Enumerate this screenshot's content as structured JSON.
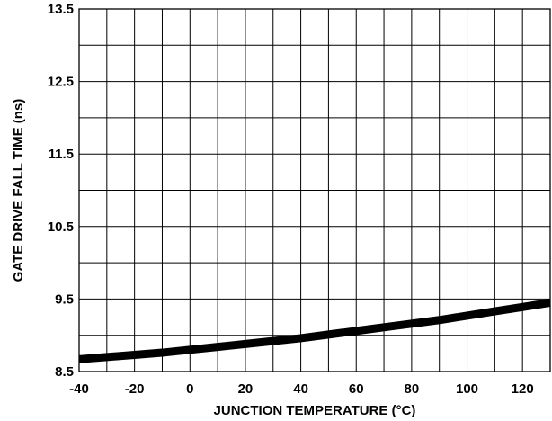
{
  "chart_data": {
    "type": "line",
    "xlabel": "JUNCTION TEMPERATURE (°C)",
    "ylabel": "GATE DRIVE FALL TIME (ns)",
    "xlim": [
      -40,
      130
    ],
    "ylim": [
      8.5,
      13.5
    ],
    "x_ticks": [
      -40,
      -20,
      0,
      20,
      40,
      60,
      80,
      100,
      120
    ],
    "y_ticks": [
      8.5,
      9.5,
      10.5,
      11.5,
      12.5,
      13.5
    ],
    "x_tick_labels": [
      "-40",
      "-20",
      "0",
      "20",
      "40",
      "60",
      "80",
      "100",
      "120"
    ],
    "y_tick_labels": [
      "8.5",
      "9.5",
      "10.5",
      "11.5",
      "12.5",
      "13.5"
    ],
    "x_grid_step": 10,
    "y_grid_step": 0.5,
    "grid": true,
    "series": [
      {
        "x": [
          -40,
          -30,
          -20,
          -10,
          0,
          10,
          20,
          30,
          40,
          50,
          60,
          70,
          80,
          90,
          100,
          110,
          120,
          130
        ],
        "y": [
          8.67,
          8.7,
          8.73,
          8.76,
          8.8,
          8.84,
          8.88,
          8.92,
          8.96,
          9.01,
          9.06,
          9.11,
          9.16,
          9.21,
          9.27,
          9.33,
          9.39,
          9.45
        ]
      }
    ]
  }
}
